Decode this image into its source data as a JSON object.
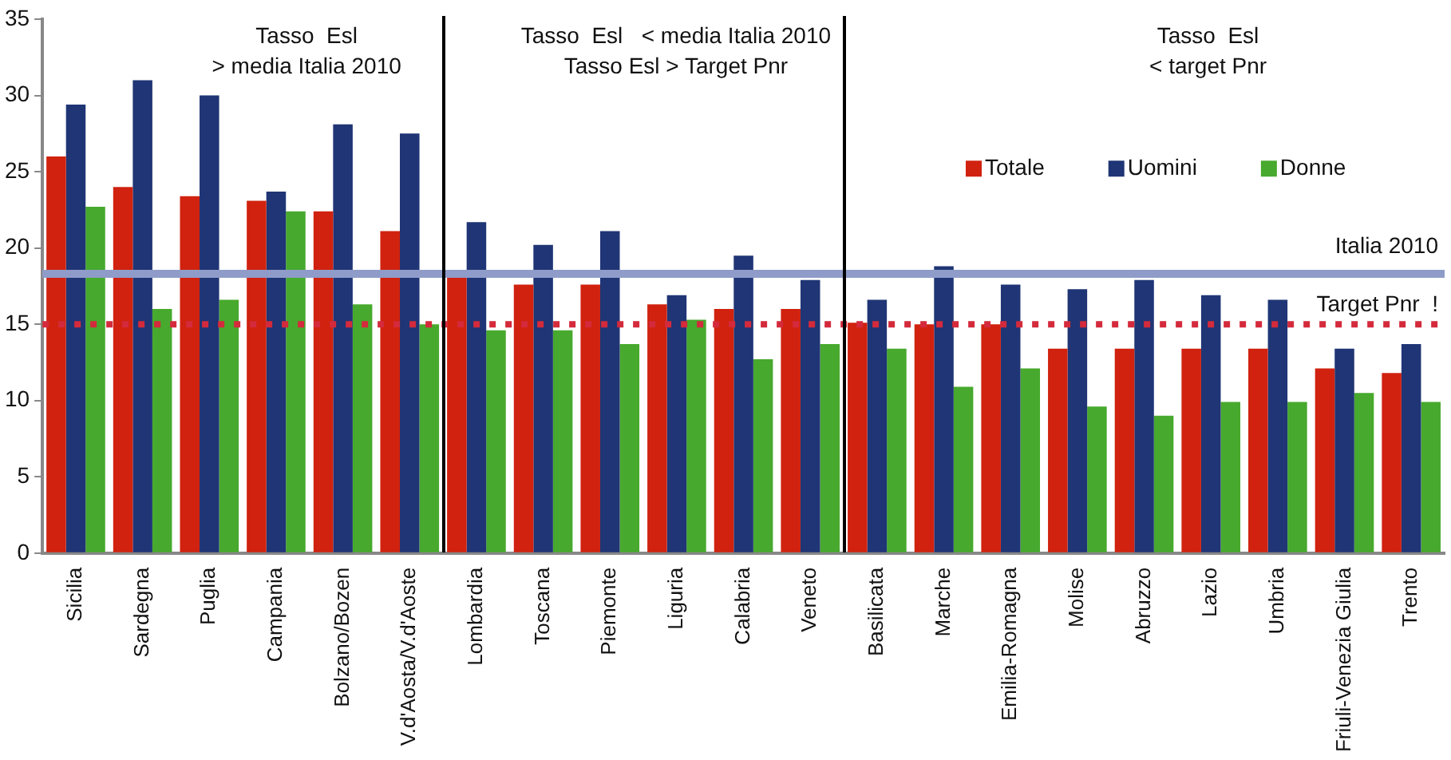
{
  "chart_data": {
    "type": "bar",
    "categories": [
      "Sicilia",
      "Sardegna",
      "Puglia",
      "Campania",
      "Bolzano/Bozen",
      "V.d'Aosta/V.d'Aoste",
      "Lombardia",
      "Toscana",
      "Piemonte",
      "Liguria",
      "Calabria",
      "Veneto",
      "Basilicata",
      "Marche",
      "Emilia-Romagna",
      "Molise",
      "Abruzzo",
      "Lazio",
      "Umbria",
      "Friuli-Venezia Giulia",
      "Trento"
    ],
    "series": [
      {
        "name": "Totale",
        "color": "#d0220f",
        "values": [
          26,
          24,
          23.4,
          23.1,
          22.4,
          21.1,
          18.2,
          17.6,
          17.6,
          16.3,
          16,
          16,
          15.1,
          15,
          15,
          13.4,
          13.4,
          13.4,
          13.4,
          12.1,
          11.8
        ]
      },
      {
        "name": "Uomini",
        "color": "#1f3575",
        "values": [
          29.4,
          31,
          30,
          23.7,
          28.1,
          27.5,
          21.7,
          20.2,
          21.1,
          16.9,
          19.5,
          17.9,
          16.6,
          18.8,
          17.6,
          17.3,
          17.9,
          16.9,
          16.6,
          13.4,
          13.7
        ]
      },
      {
        "name": "Donne",
        "color": "#47a92d",
        "values": [
          22.7,
          16,
          16.6,
          22.4,
          16.3,
          15,
          14.6,
          14.6,
          13.7,
          15.3,
          12.7,
          13.7,
          13.4,
          10.9,
          12.1,
          9.6,
          9,
          9.9,
          9.9,
          10.5,
          9.9
        ]
      }
    ],
    "ylim": [
      0,
      35
    ],
    "yticks": [
      0,
      5,
      10,
      15,
      20,
      25,
      30,
      35
    ],
    "grid": false,
    "legend": "right",
    "ref_lines": [
      {
        "axis": "y",
        "value": 18.3,
        "label": "Italia 2010",
        "color": "#8f9cc9",
        "line_style": "solid"
      },
      {
        "axis": "y",
        "value": 15,
        "label": "Target Pnr  !",
        "color": "#d42a3c",
        "line_style": "dotted"
      }
    ],
    "annotations": [
      "Tasso  Esl\n> media Italia 2010",
      "Tasso  Esl   < media Italia 2010\nTasso Esl > Target Pnr",
      "Tasso  Esl\n< target Pnr"
    ]
  }
}
